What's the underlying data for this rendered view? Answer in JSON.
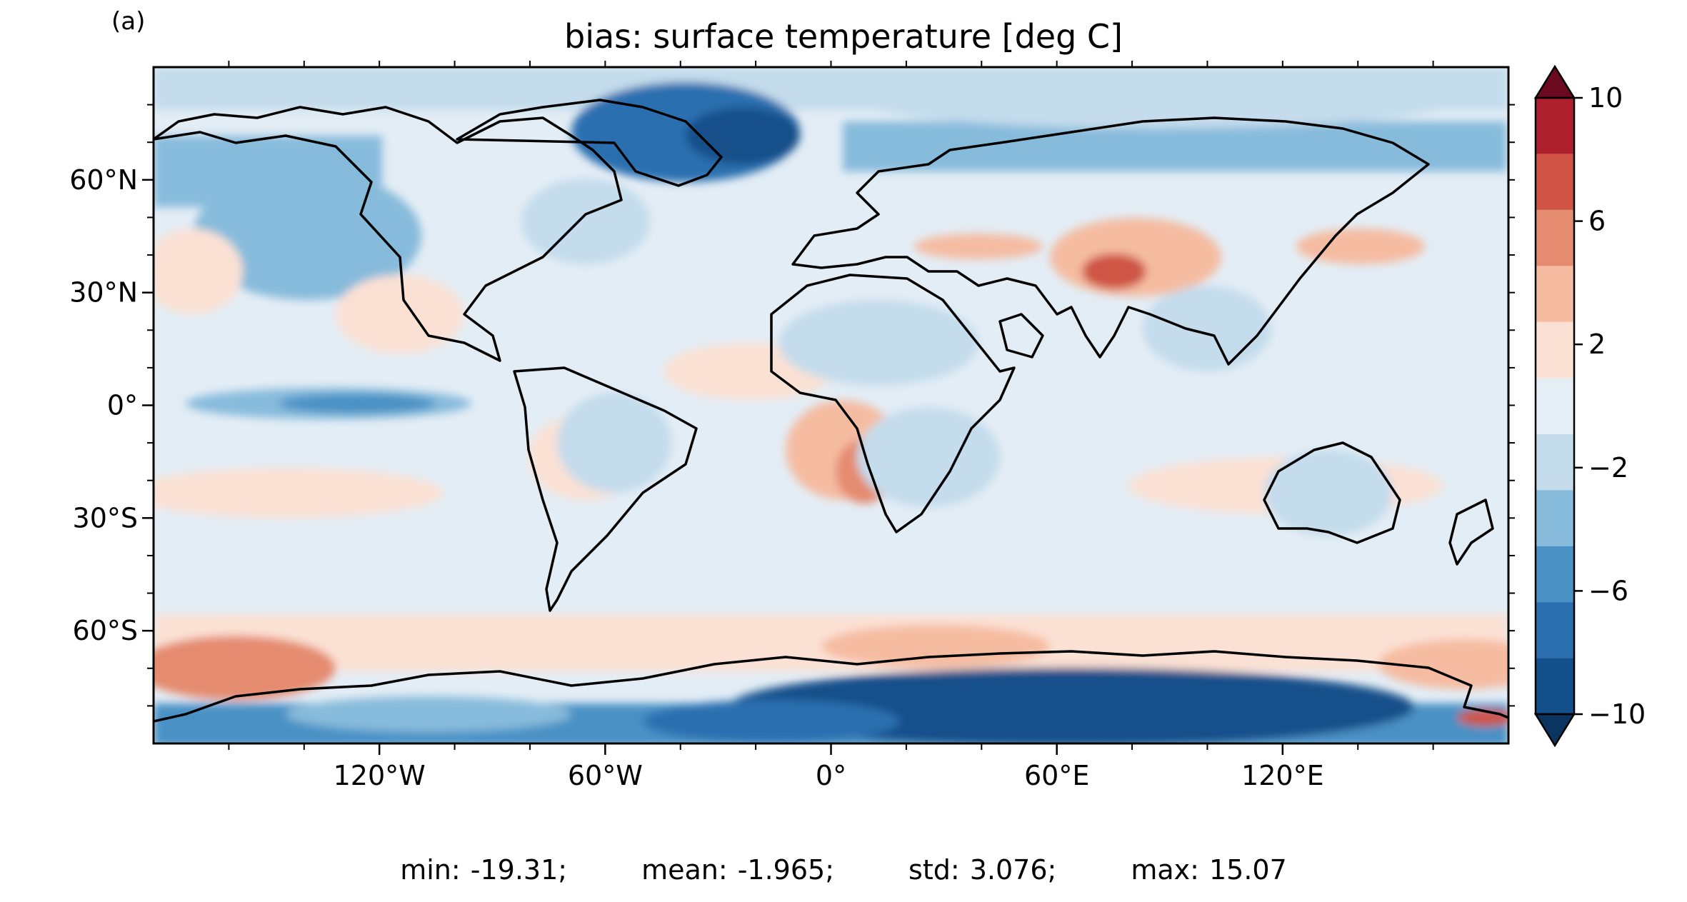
{
  "panel_label": "(a)",
  "title": "bias: surface temperature [deg C]",
  "stats": {
    "min": "min: -19.31;",
    "mean": "mean: -1.965;",
    "std": "std: 3.076;",
    "max": "max: 15.07"
  },
  "map": {
    "projection": "plate-carree",
    "lon_range": [
      -180,
      180
    ],
    "lat_range": [
      -90,
      90
    ],
    "lon_ticks": [
      {
        "value": -120,
        "label": "120°W"
      },
      {
        "value": -60,
        "label": "60°W"
      },
      {
        "value": 0,
        "label": "0°"
      },
      {
        "value": 60,
        "label": "60°E"
      },
      {
        "value": 120,
        "label": "120°E"
      }
    ],
    "lat_ticks": [
      {
        "value": 60,
        "label": "60°N"
      },
      {
        "value": 30,
        "label": "30°N"
      },
      {
        "value": 0,
        "label": "0°"
      },
      {
        "value": -30,
        "label": "30°S"
      },
      {
        "value": -60,
        "label": "60°S"
      }
    ],
    "ocean_base_color": "#e3edf5",
    "coastline_color": "#000000"
  },
  "colorbar": {
    "levels": [
      -10,
      -8,
      -6,
      -4,
      -2,
      0,
      2,
      4,
      6,
      8,
      10
    ],
    "tick_labels": [
      {
        "value": 10,
        "label": "10"
      },
      {
        "value": 6,
        "label": "6"
      },
      {
        "value": 2,
        "label": "2"
      },
      {
        "value": -2,
        "label": "−2"
      },
      {
        "value": -6,
        "label": "−6"
      },
      {
        "value": -10,
        "label": "−10"
      }
    ],
    "colors": [
      "#134f8a",
      "#2b6fb0",
      "#4a91c5",
      "#87bbdb",
      "#c4dcec",
      "#e5eef5",
      "#fbe1d4",
      "#f5bca1",
      "#e58b6f",
      "#cf5445",
      "#ad1f2c"
    ],
    "extend_low_color": "#0c3460",
    "extend_high_color": "#6b0a1e"
  }
}
